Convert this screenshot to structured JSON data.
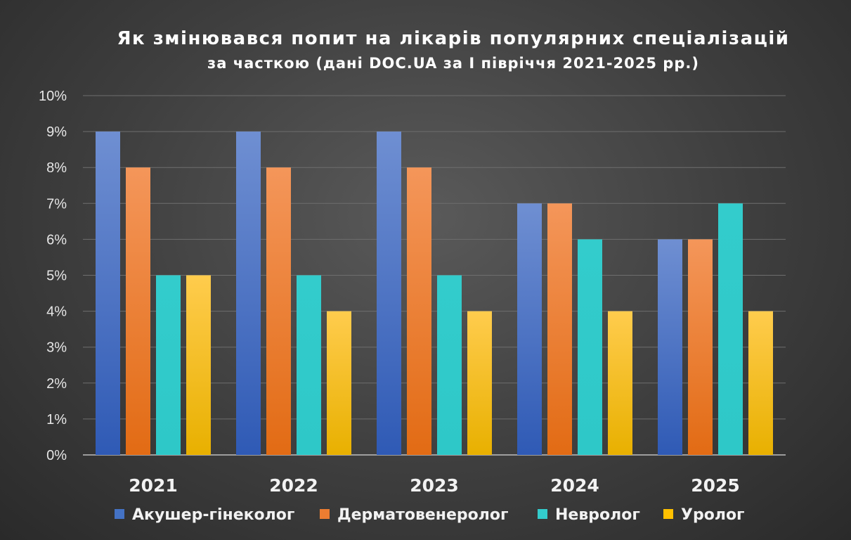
{
  "chart_data": {
    "type": "bar",
    "title": "Як змінювався попит на лікарів популярних спеціалізацій",
    "subtitle": "за часткою (дані DOC.UA за І півріччя 2021-2025 рр.)",
    "categories": [
      "2021",
      "2022",
      "2023",
      "2024",
      "2025"
    ],
    "y_ticks": [
      "0%",
      "1%",
      "2%",
      "3%",
      "4%",
      "5%",
      "6%",
      "7%",
      "8%",
      "9%",
      "10%"
    ],
    "ylim": [
      0,
      10
    ],
    "grid": true,
    "legend_position": "bottom",
    "series": [
      {
        "name": "Акушер-гінеколог",
        "values": [
          9,
          9,
          9,
          7,
          6
        ],
        "color": "#4472c4"
      },
      {
        "name": "Дерматовенеролог",
        "values": [
          8,
          8,
          8,
          7,
          6
        ],
        "color": "#ed7d31"
      },
      {
        "name": "Невролог",
        "values": [
          5,
          5,
          5,
          6,
          7
        ],
        "color": "#33cccc"
      },
      {
        "name": "Уролог",
        "values": [
          5,
          4,
          4,
          4,
          4
        ],
        "color": "#ffc000"
      }
    ]
  }
}
